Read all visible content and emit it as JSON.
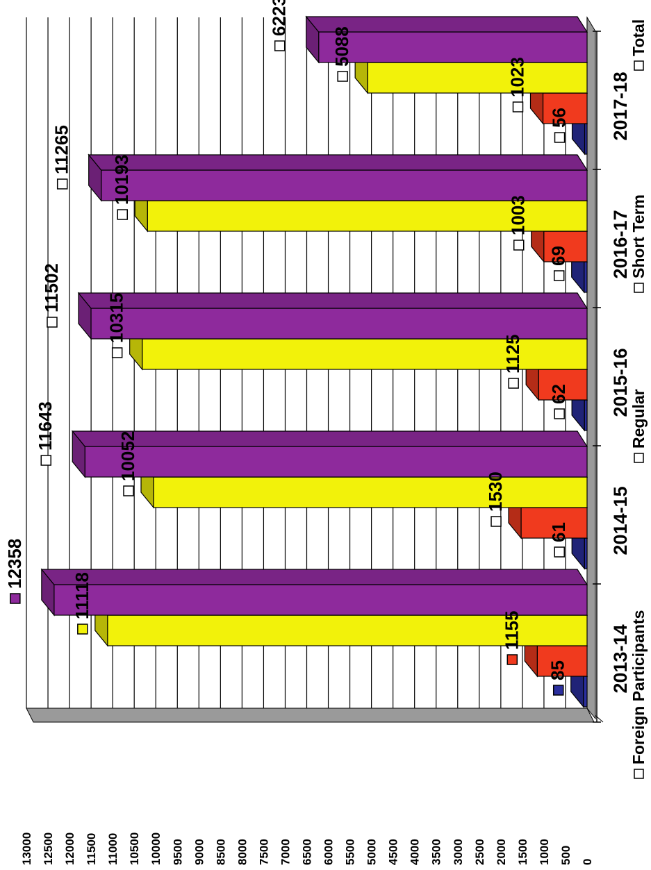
{
  "chart_data": {
    "type": "bar",
    "orientation": "rotated-90-clockwise",
    "style": "3d-clustered",
    "categories": [
      "2013-14",
      "2014-15",
      "2015-16",
      "2016-17",
      "2017-18"
    ],
    "series": [
      {
        "name": "Foreign Participants",
        "values": [
          85,
          61,
          62,
          69,
          56
        ],
        "color": "#2b2f9e"
      },
      {
        "name": "Regular",
        "values": [
          1155,
          1530,
          1125,
          1003,
          1023
        ],
        "color": "#f03a1e"
      },
      {
        "name": "Short Term",
        "values": [
          11118,
          10052,
          10315,
          10193,
          5088
        ],
        "color": "#f2f20a"
      },
      {
        "name": "Total",
        "values": [
          12358,
          11643,
          11502,
          11265,
          6223
        ],
        "color": "#8e2a9c"
      }
    ],
    "value_labels": [
      [
        "85",
        "61",
        "62",
        "69",
        "56"
      ],
      [
        "1155",
        "1530",
        "1125",
        "1003",
        "1023"
      ],
      [
        "11118",
        "10052",
        "10315",
        "10193",
        "5088"
      ],
      [
        "12358",
        "11643",
        "11502",
        "11265",
        "6223"
      ]
    ],
    "ylim": [
      0,
      13000
    ],
    "ytick_step": 500,
    "yticks": [
      "0",
      "500",
      "1000",
      "1500",
      "2000",
      "2500",
      "3000",
      "3500",
      "4000",
      "4500",
      "5000",
      "5500",
      "6000",
      "6500",
      "7000",
      "7500",
      "8000",
      "8500",
      "9000",
      "9500",
      "10000",
      "10500",
      "11000",
      "11500",
      "12000",
      "12500",
      "13000"
    ],
    "grid": true,
    "legend_position": "bottom",
    "legend_entries": [
      "Foreign Participants",
      "Regular",
      "Short Term",
      "Total"
    ]
  }
}
